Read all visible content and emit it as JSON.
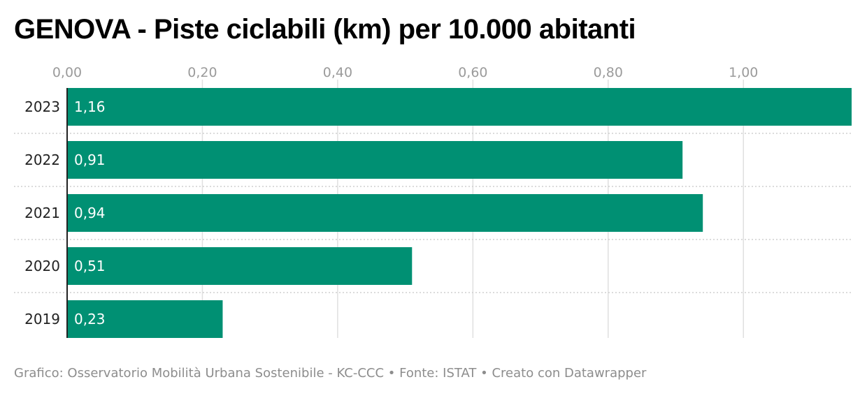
{
  "title": "GENOVA - Piste ciclabili (km) per 10.000 abitanti",
  "footer": "Grafico: Osservatorio Mobilità Urbana Sostenibile - KC-CCC • Fonte: ISTAT • Creato con Datawrapper",
  "colors": {
    "bar": "#009073",
    "grid": "#e0e0e0",
    "separator": "#cfcfcf",
    "axis": "#222222"
  },
  "chart_data": {
    "type": "bar",
    "orientation": "horizontal",
    "categories": [
      "2023",
      "2022",
      "2021",
      "2020",
      "2019"
    ],
    "values": [
      1.16,
      0.91,
      0.94,
      0.51,
      0.23
    ],
    "value_labels": [
      "1,16",
      "0,91",
      "0,94",
      "0,51",
      "0,23"
    ],
    "xticks": [
      0,
      0.2,
      0.4,
      0.6,
      0.8,
      1.0
    ],
    "xtick_labels": [
      "0,00",
      "0,20",
      "0,40",
      "0,60",
      "0,80",
      "1,00"
    ],
    "xlim": [
      0,
      1.16
    ],
    "xaxis_position": "top",
    "grid": true
  }
}
